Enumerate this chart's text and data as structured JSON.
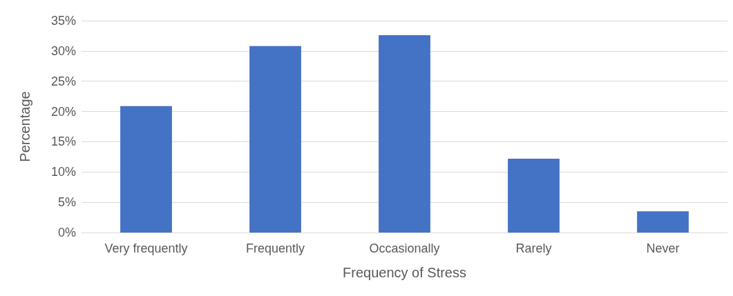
{
  "chart_data": {
    "type": "bar",
    "xlabel": "Frequency of Stress",
    "ylabel": "Percentage",
    "categories": [
      "Very frequently",
      "Frequently",
      "Occasionally",
      "Rarely",
      "Never"
    ],
    "values": [
      20.9,
      30.8,
      32.6,
      12.2,
      3.5
    ],
    "color": "#4472c4",
    "ylim": [
      0,
      35
    ],
    "yticks": [
      {
        "value": 0,
        "label": "0%"
      },
      {
        "value": 5,
        "label": "5%"
      },
      {
        "value": 10,
        "label": "10%"
      },
      {
        "value": 15,
        "label": "15%"
      },
      {
        "value": 20,
        "label": "20%"
      },
      {
        "value": 25,
        "label": "25%"
      },
      {
        "value": 30,
        "label": "30%"
      },
      {
        "value": 35,
        "label": "35%"
      }
    ],
    "grid": "y"
  }
}
